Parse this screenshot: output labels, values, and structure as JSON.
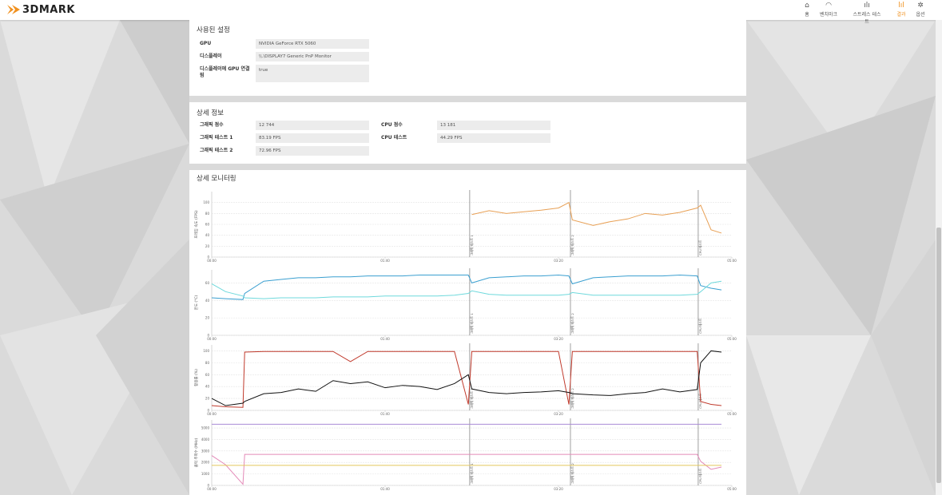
{
  "header": {
    "logo": "3DMARK",
    "nav": [
      "홈",
      "벤치마크",
      "스트레스 테스트",
      "결과",
      "옵션"
    ]
  },
  "settings": {
    "title": "사용된 설정",
    "rows": [
      [
        "GPU",
        "NVIDIA GeForce RTX 5060"
      ],
      [
        "디스플레이",
        "\\\\.\\DISPLAY7 Generic PnP Monitor"
      ],
      [
        "디스플레이에 GPU 연결됨",
        "true"
      ]
    ]
  },
  "details": {
    "title": "상세 정보",
    "left": [
      [
        "그래픽 점수",
        "12 744"
      ],
      [
        "그래픽 테스트 1",
        "83.19 FPS"
      ],
      [
        "그래픽 테스트 2",
        "72.96 FPS"
      ]
    ],
    "right": [
      [
        "CPU 점수",
        "13 181"
      ],
      [
        "CPU 테스트",
        "44.29 FPS"
      ]
    ]
  },
  "monitoring": {
    "title": "상세 모니터링",
    "x": [
      0,
      8,
      18,
      19,
      30,
      40,
      50,
      60,
      70,
      80,
      90,
      100,
      110,
      120,
      130,
      140,
      148,
      150,
      160,
      170,
      180,
      190,
      200,
      206,
      208,
      220,
      230,
      240,
      250,
      260,
      270,
      280,
      282,
      288,
      294
    ],
    "xlim": [
      0,
      300
    ],
    "xticks": [
      {
        "value": 0,
        "label": "00:00"
      },
      {
        "value": 100,
        "label": "01:40"
      },
      {
        "value": 200,
        "label": "03:20"
      },
      {
        "value": 300,
        "label": "05:00"
      }
    ],
    "markers": [
      {
        "value": 148.8,
        "label": "그래픽 테스트 1"
      },
      {
        "value": 206.9,
        "label": "그래픽 테스트 2"
      },
      {
        "value": 280.6,
        "label": "CPU 테스트"
      }
    ],
    "charts": [
      {
        "type": "line",
        "ylabel": "프레임 속도 (FPS)",
        "ylim": [
          0,
          120
        ],
        "yticks": [
          0,
          20,
          40,
          60,
          80,
          100
        ],
        "series": [
          {
            "color": "#e8a055",
            "values": [
              null,
              null,
              null,
              null,
              null,
              null,
              null,
              null,
              null,
              null,
              null,
              null,
              null,
              null,
              null,
              null,
              null,
              78,
              85,
              80,
              83,
              86,
              90,
              100,
              68,
              58,
              65,
              70,
              80,
              77,
              82,
              90,
              95,
              50,
              44
            ]
          }
        ]
      },
      {
        "type": "line",
        "ylabel": "온도 (°C)",
        "ylim": [
          0,
          75
        ],
        "yticks": [
          0,
          20,
          40,
          60
        ],
        "series": [
          {
            "color": "#3a9fd0",
            "values": [
              43,
              42,
              41,
              48,
              62,
              64,
              66,
              66,
              67,
              67,
              68,
              68,
              68,
              69,
              69,
              69,
              69,
              60,
              66,
              67,
              68,
              68,
              69,
              68,
              59,
              66,
              67,
              68,
              68,
              68,
              69,
              68,
              57,
              54,
              52
            ]
          },
          {
            "color": "#6fd9dc",
            "values": [
              59,
              50,
              45,
              43,
              42,
              43,
              43,
              43,
              44,
              44,
              44,
              45,
              45,
              45,
              45,
              46,
              48,
              51,
              47,
              46,
              46,
              46,
              46,
              47,
              49,
              46,
              46,
              46,
              46,
              46,
              46,
              47,
              50,
              60,
              62
            ]
          }
        ]
      },
      {
        "type": "line",
        "ylabel": "활용률 (%)",
        "ylim": [
          0,
          110
        ],
        "yticks": [
          0,
          20,
          40,
          60,
          80,
          100
        ],
        "series": [
          {
            "color": "#c0392b",
            "values": [
              8,
              6,
              5,
              98,
              99,
              99,
              99,
              99,
              99,
              82,
              99,
              99,
              99,
              99,
              99,
              99,
              10,
              99,
              99,
              99,
              99,
              99,
              99,
              10,
              99,
              99,
              99,
              99,
              99,
              99,
              99,
              99,
              15,
              10,
              8
            ]
          },
          {
            "color": "#111111",
            "values": [
              20,
              8,
              12,
              15,
              28,
              30,
              36,
              32,
              50,
              45,
              48,
              38,
              42,
              40,
              35,
              45,
              60,
              36,
              30,
              28,
              30,
              31,
              33,
              30,
              28,
              26,
              25,
              28,
              30,
              36,
              31,
              35,
              80,
              100,
              98
            ]
          }
        ]
      },
      {
        "type": "line",
        "ylabel": "클럭 주파수 (MHz)",
        "ylim": [
          0,
          5700
        ],
        "yticks": [
          0,
          1000,
          2000,
          3000,
          4000,
          5000
        ],
        "series": [
          {
            "color": "#a98bd6",
            "values": [
              5330,
              5330,
              5330,
              5330,
              5330,
              5330,
              5330,
              5330,
              5330,
              5330,
              5330,
              5330,
              5330,
              5330,
              5330,
              5330,
              5330,
              5330,
              5330,
              5330,
              5330,
              5330,
              5330,
              5330,
              5330,
              5330,
              5330,
              5330,
              5330,
              5330,
              5330,
              5330,
              5330,
              5330,
              5330
            ]
          },
          {
            "color": "#e48ab8",
            "values": [
              2600,
              1800,
              100,
              2700,
              2700,
              2700,
              2700,
              2700,
              2700,
              2700,
              2700,
              2700,
              2700,
              2700,
              2700,
              2700,
              2700,
              2700,
              2700,
              2700,
              2700,
              2700,
              2700,
              2700,
              2700,
              2700,
              2700,
              2700,
              2700,
              2700,
              2700,
              2700,
              2100,
              1400,
              1600
            ]
          },
          {
            "color": "#e3c75c",
            "values": [
              1750,
              1750,
              1750,
              1750,
              1750,
              1750,
              1750,
              1750,
              1750,
              1750,
              1750,
              1750,
              1750,
              1750,
              1750,
              1750,
              1750,
              1750,
              1750,
              1750,
              1750,
              1750,
              1750,
              1750,
              1750,
              1750,
              1750,
              1750,
              1750,
              1750,
              1750,
              1750,
              1750,
              1750,
              1750
            ]
          }
        ]
      }
    ]
  }
}
